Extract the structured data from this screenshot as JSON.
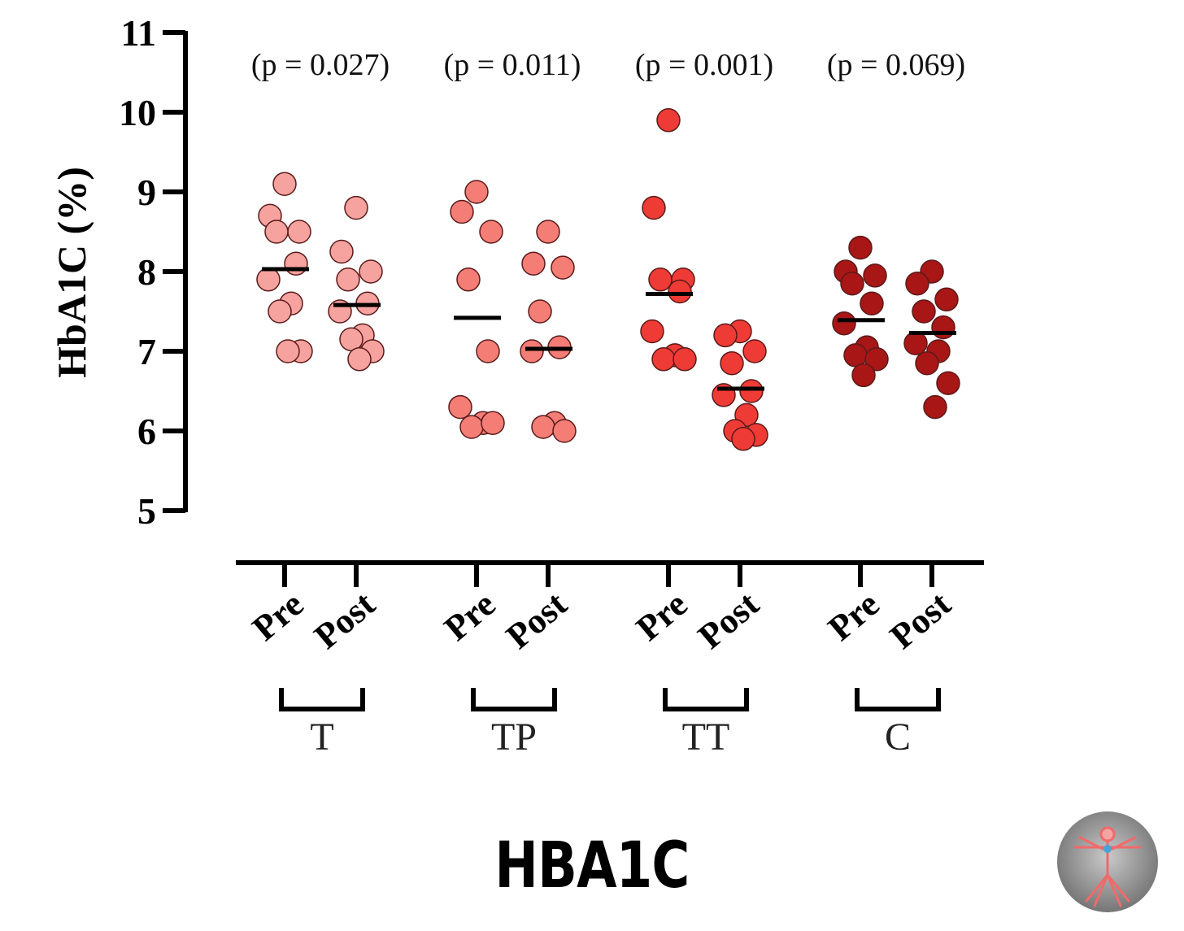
{
  "footer_title": "HBA1C",
  "logo": {
    "icon": "vitruvian-man-icon"
  },
  "chart_data": {
    "type": "scatter",
    "ylabel": "HbA1C (%)",
    "ylim": [
      5,
      11
    ],
    "yticks": [
      "5",
      "6",
      "7",
      "8",
      "9",
      "10",
      "11"
    ],
    "groups": [
      {
        "name": "T",
        "p_value": "(p = 0.027)",
        "color": "#f6a3a0",
        "conditions": [
          {
            "name": "Pre",
            "mean": 8.03,
            "values": [
              9.1,
              8.7,
              8.5,
              8.5,
              8.1,
              7.9,
              7.6,
              7.5,
              7.0,
              7.0
            ]
          },
          {
            "name": "Post",
            "mean": 7.58,
            "values": [
              8.8,
              8.25,
              8.0,
              7.9,
              7.6,
              7.5,
              7.2,
              7.15,
              7.0,
              6.9
            ]
          }
        ]
      },
      {
        "name": "TP",
        "p_value": "(p = 0.011)",
        "color": "#f47d76",
        "conditions": [
          {
            "name": "Pre",
            "mean": 7.42,
            "values": [
              9.0,
              8.75,
              8.5,
              7.9,
              7.0,
              6.3,
              6.1,
              6.05,
              6.1
            ]
          },
          {
            "name": "Post",
            "mean": 7.03,
            "values": [
              8.5,
              8.1,
              8.05,
              7.5,
              7.05,
              7.0,
              6.1,
              6.05,
              6.0
            ]
          }
        ]
      },
      {
        "name": "TT",
        "p_value": "(p = 0.001)",
        "color": "#ef3b35",
        "conditions": [
          {
            "name": "Pre",
            "mean": 7.72,
            "values": [
              9.9,
              8.8,
              7.9,
              7.9,
              7.75,
              7.25,
              6.95,
              6.9,
              6.9
            ]
          },
          {
            "name": "Post",
            "mean": 6.53,
            "values": [
              7.25,
              7.2,
              7.0,
              6.85,
              6.5,
              6.45,
              6.2,
              6.0,
              5.95,
              5.9
            ]
          }
        ]
      },
      {
        "name": "C",
        "p_value": "(p = 0.069)",
        "color": "#a81616",
        "conditions": [
          {
            "name": "Pre",
            "mean": 7.39,
            "values": [
              8.3,
              8.0,
              7.95,
              7.85,
              7.6,
              7.35,
              7.05,
              6.95,
              6.9,
              6.7
            ]
          },
          {
            "name": "Post",
            "mean": 7.23,
            "values": [
              8.0,
              7.85,
              7.65,
              7.5,
              7.3,
              7.1,
              7.0,
              6.85,
              6.6,
              6.3
            ]
          }
        ]
      }
    ]
  }
}
